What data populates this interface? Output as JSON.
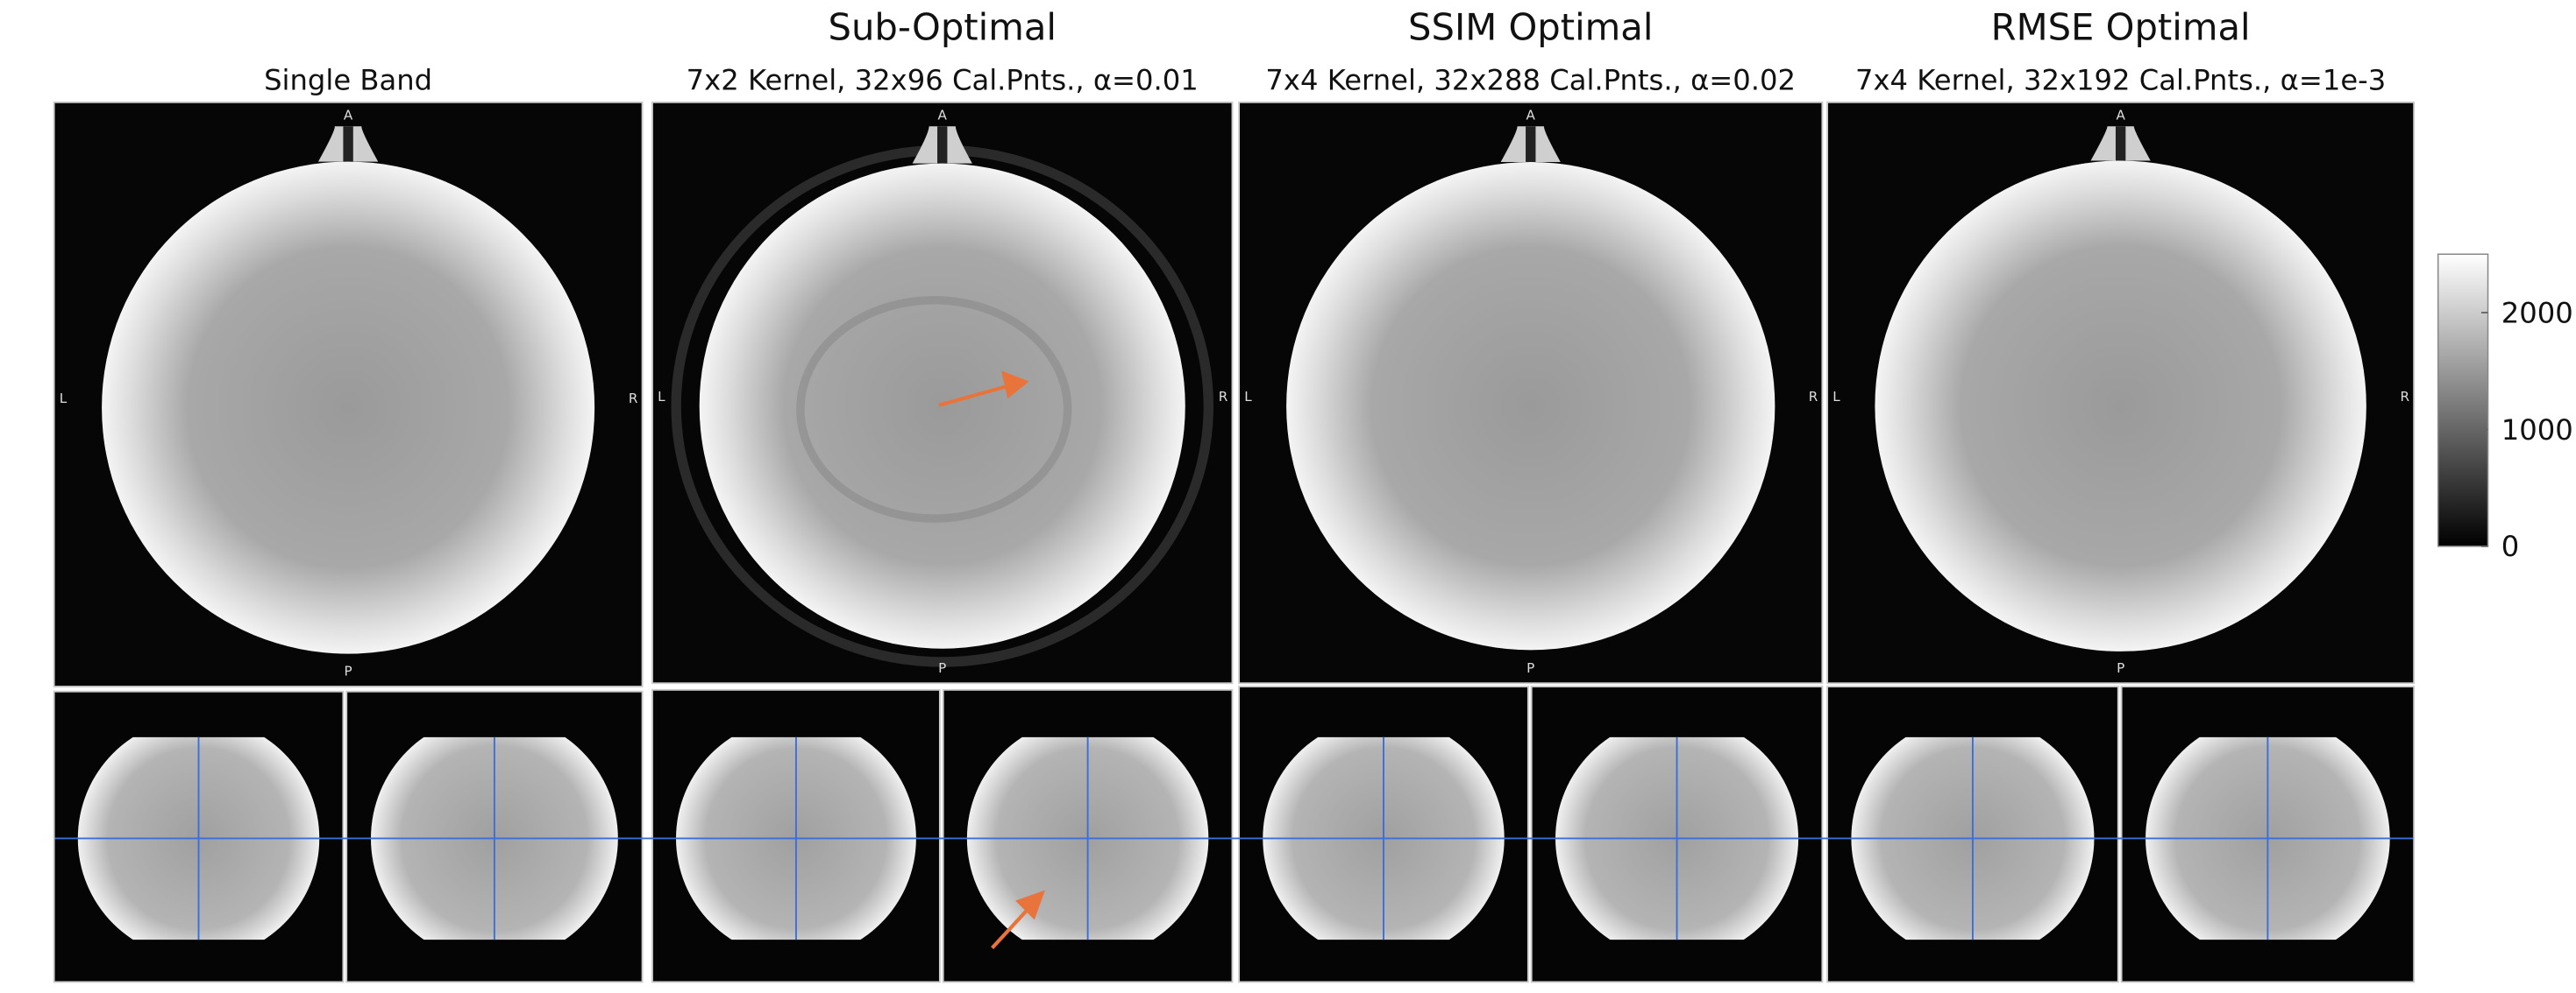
{
  "panels": [
    {
      "subtitle": "Single Band"
    },
    {
      "title": "Sub-Optimal",
      "subtitle": "7x2 Kernel, 32x96 Cal.Pnts., α=0.01"
    },
    {
      "title": "SSIM Optimal",
      "subtitle": "7x4 Kernel, 32x288 Cal.Pnts., α=0.02"
    },
    {
      "title": "RMSE Optimal",
      "subtitle": "7x4 Kernel, 32x192 Cal.Pnts., α=1e-3"
    }
  ],
  "orientation": {
    "top": "A",
    "left": "L",
    "right": "R",
    "bottom": "P"
  },
  "colorbar": {
    "lim": [
      0,
      2500
    ],
    "ticks": [
      0,
      1000,
      2000
    ]
  }
}
